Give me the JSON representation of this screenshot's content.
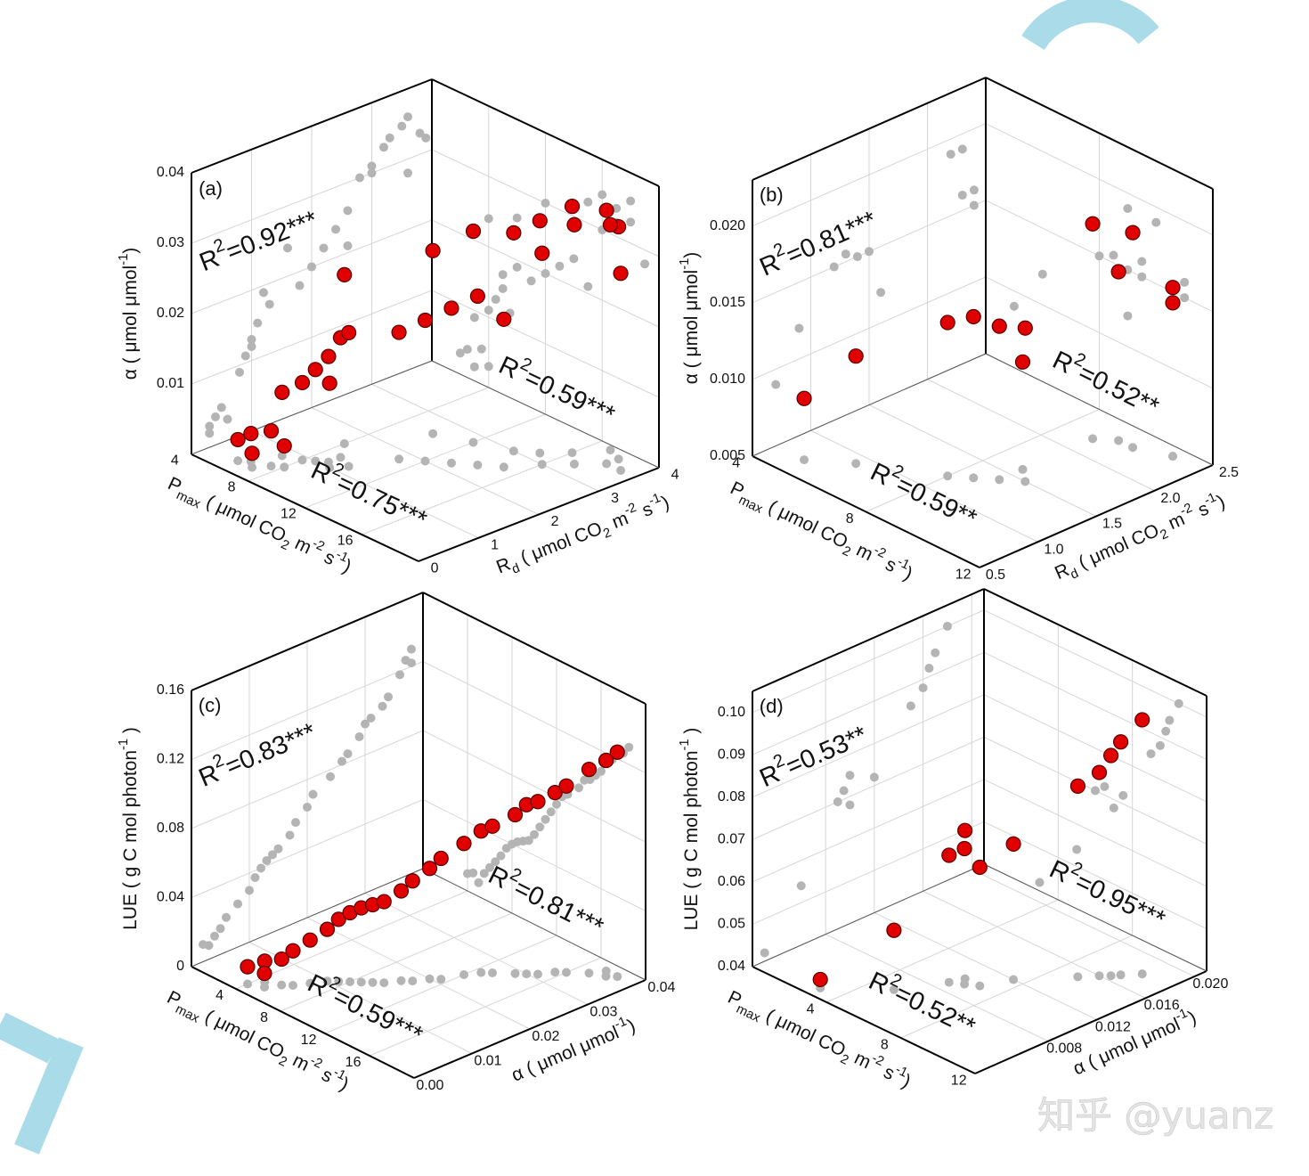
{
  "chart_data": [
    {
      "type": "scatter3d",
      "label": "(a)",
      "xlabel": [
        {
          "text": "P"
        },
        {
          "text": "max",
          "shift": "sub"
        },
        {
          "text": " ( μmol CO"
        },
        {
          "text": "2",
          "shift": "sub"
        },
        {
          "text": " m"
        },
        {
          "text": "-2",
          "shift": "sup"
        },
        {
          "text": " s"
        },
        {
          "text": "-1",
          "shift": "sup"
        },
        {
          "text": ")"
        }
      ],
      "ylabel": [
        {
          "text": "R"
        },
        {
          "text": "d",
          "shift": "sub"
        },
        {
          "text": " ( μmol CO"
        },
        {
          "text": "2",
          "shift": "sub"
        },
        {
          "text": " m"
        },
        {
          "text": "-2",
          "shift": "sup"
        },
        {
          "text": " s"
        },
        {
          "text": "-1",
          "shift": "sup"
        },
        {
          "text": ")"
        }
      ],
      "zlabel": [
        {
          "text": "α ( μmol μmol"
        },
        {
          "text": "-1",
          "shift": "sup"
        },
        {
          "text": ")"
        }
      ],
      "xlim": [
        4,
        20
      ],
      "ylim": [
        0,
        4
      ],
      "zlim": [
        0,
        0.04
      ],
      "xticks": [
        4,
        8,
        12,
        16
      ],
      "yticks": [
        0,
        1,
        2,
        3,
        4
      ],
      "zticks": [
        0.01,
        0.02,
        0.03,
        0.04
      ],
      "grid": true,
      "projection_color": "#b4b4b4",
      "series": [
        {
          "color": "#e00000",
          "x": [
            6,
            6.5,
            7,
            7.5,
            8,
            7,
            8,
            8.5,
            9,
            9.5,
            9,
            10,
            8,
            11,
            12,
            10,
            13,
            12,
            14,
            14,
            15,
            16,
            17,
            18,
            16,
            18,
            19,
            17,
            15
          ],
          "y": [
            0.3,
            0.4,
            0.3,
            0.5,
            0.6,
            0.8,
            0.9,
            1.0,
            1.1,
            1.0,
            1.3,
            1.2,
            1.6,
            1.8,
            2.0,
            2.6,
            2.2,
            2.8,
            2.4,
            3.0,
            3.2,
            3.0,
            3.3,
            3.6,
            3.5,
            3.8,
            3.6,
            3.9,
            2.6
          ],
          "z": [
            0.003,
            0.004,
            0.002,
            0.005,
            0.003,
            0.009,
            0.011,
            0.013,
            0.015,
            0.012,
            0.017,
            0.019,
            0.024,
            0.018,
            0.02,
            0.026,
            0.022,
            0.03,
            0.024,
            0.031,
            0.033,
            0.03,
            0.034,
            0.036,
            0.035,
            0.033,
            0.028,
            0.032,
            0.021
          ]
        }
      ],
      "annotations": [
        {
          "wall": "left",
          "text": [
            {
              "text": "R"
            },
            {
              "text": "2",
              "shift": "sup"
            },
            {
              "text": "=0.92***"
            }
          ]
        },
        {
          "wall": "right",
          "text": [
            {
              "text": "R"
            },
            {
              "text": "2",
              "shift": "sup"
            },
            {
              "text": "=0.59***"
            }
          ]
        },
        {
          "wall": "floor",
          "text": [
            {
              "text": "R"
            },
            {
              "text": "2",
              "shift": "sup"
            },
            {
              "text": "=0.75***"
            }
          ]
        }
      ]
    },
    {
      "type": "scatter3d",
      "label": "(b)",
      "xlabel": [
        {
          "text": "P"
        },
        {
          "text": "max",
          "shift": "sub"
        },
        {
          "text": " ( μmol CO"
        },
        {
          "text": "2",
          "shift": "sub"
        },
        {
          "text": " m"
        },
        {
          "text": "-2",
          "shift": "sup"
        },
        {
          "text": " s"
        },
        {
          "text": "-1",
          "shift": "sup"
        },
        {
          "text": ")"
        }
      ],
      "ylabel": [
        {
          "text": "R"
        },
        {
          "text": "d",
          "shift": "sub"
        },
        {
          "text": " ( μmol CO"
        },
        {
          "text": "2",
          "shift": "sub"
        },
        {
          "text": " m"
        },
        {
          "text": "-2",
          "shift": "sup"
        },
        {
          "text": " s"
        },
        {
          "text": "-1",
          "shift": "sup"
        },
        {
          "text": ")"
        }
      ],
      "zlabel": [
        {
          "text": "α ( μmol μmol"
        },
        {
          "text": "-1",
          "shift": "sup"
        },
        {
          "text": ")"
        }
      ],
      "xlim": [
        4,
        12
      ],
      "ylim": [
        0.5,
        2.5
      ],
      "zlim": [
        0.005,
        0.023
      ],
      "xticks": [
        4,
        8,
        12
      ],
      "yticks": [
        0.5,
        {
          "value": 1,
          "label": "1.0"
        },
        1.5,
        {
          "value": 2,
          "label": "2.0"
        },
        2.5
      ],
      "zticks": [
        0.005,
        {
          "value": 0.01,
          "label": "0.010"
        },
        0.015,
        {
          "value": 0.02,
          "label": "0.020"
        }
      ],
      "grid": true,
      "projection_color": "#b4b4b4",
      "series": [
        {
          "color": "#e00000",
          "x": [
            5,
            6,
            8,
            8.5,
            9,
            9.5,
            9,
            9,
            10,
            9.5,
            11,
            11
          ],
          "y": [
            0.7,
            0.9,
            1.2,
            1.3,
            1.4,
            1.5,
            1.6,
            2.2,
            2.3,
            2.3,
            2.4,
            2.4
          ],
          "z": [
            0.009,
            0.012,
            0.015,
            0.0155,
            0.015,
            0.015,
            0.012,
            0.019,
            0.019,
            0.016,
            0.016,
            0.015
          ]
        }
      ],
      "annotations": [
        {
          "wall": "left",
          "text": [
            {
              "text": "R"
            },
            {
              "text": "2",
              "shift": "sup"
            },
            {
              "text": "=0.81***"
            }
          ]
        },
        {
          "wall": "right",
          "text": [
            {
              "text": "R"
            },
            {
              "text": "2",
              "shift": "sup"
            },
            {
              "text": "=0.52**"
            }
          ]
        },
        {
          "wall": "floor",
          "text": [
            {
              "text": "R"
            },
            {
              "text": "2",
              "shift": "sup"
            },
            {
              "text": "=0.59**"
            }
          ]
        }
      ]
    },
    {
      "type": "scatter3d",
      "label": "(c)",
      "xlabel": [
        {
          "text": "P"
        },
        {
          "text": "max",
          "shift": "sub"
        },
        {
          "text": " ( μmol CO"
        },
        {
          "text": "2",
          "shift": "sub"
        },
        {
          "text": " m"
        },
        {
          "text": "-2",
          "shift": "sup"
        },
        {
          "text": " s"
        },
        {
          "text": "-1",
          "shift": "sup"
        },
        {
          "text": ")"
        }
      ],
      "ylabel": [
        {
          "text": "α ( μmol μmol"
        },
        {
          "text": "-1",
          "shift": "sup"
        },
        {
          "text": ")"
        }
      ],
      "zlabel": [
        {
          "text": "LUE ( g C mol photon"
        },
        {
          "text": "-1",
          "shift": "sup"
        },
        {
          "text": " )"
        }
      ],
      "xlim": [
        0,
        20
      ],
      "ylim": [
        0,
        0.04
      ],
      "zlim": [
        0,
        0.16
      ],
      "xticks": [
        4,
        8,
        12,
        16
      ],
      "yticks": [
        {
          "value": 0,
          "label": "0.00"
        },
        0.01,
        0.02,
        0.03,
        0.04
      ],
      "zticks": [
        0,
        0.04,
        0.08,
        0.12,
        0.16
      ],
      "grid": true,
      "projection_color": "#b4b4b4",
      "series": [
        {
          "color": "#e00000",
          "x": [
            4,
            4.5,
            5,
            5.5,
            6,
            6.5,
            7,
            7.5,
            8,
            8.5,
            9,
            9.5,
            10,
            10.5,
            11,
            11.5,
            12,
            12.5,
            13,
            14,
            14.5,
            15,
            15.5,
            16,
            17,
            18,
            18.5,
            17.5
          ],
          "y": [
            0.002,
            0.004,
            0.003,
            0.005,
            0.006,
            0.008,
            0.01,
            0.011,
            0.012,
            0.013,
            0.014,
            0.015,
            0.017,
            0.018,
            0.02,
            0.021,
            0.024,
            0.026,
            0.027,
            0.029,
            0.03,
            0.031,
            0.033,
            0.034,
            0.036,
            0.037,
            0.038,
            0.038
          ],
          "z": [
            0.01,
            0.012,
            0.008,
            0.015,
            0.02,
            0.025,
            0.03,
            0.036,
            0.04,
            0.043,
            0.045,
            0.047,
            0.052,
            0.058,
            0.064,
            0.07,
            0.076,
            0.082,
            0.085,
            0.092,
            0.098,
            0.1,
            0.104,
            0.108,
            0.118,
            0.125,
            0.13,
            0.122
          ]
        }
      ],
      "annotations": [
        {
          "wall": "left",
          "text": [
            {
              "text": "R"
            },
            {
              "text": "2",
              "shift": "sup"
            },
            {
              "text": "=0.83***"
            }
          ]
        },
        {
          "wall": "right",
          "text": [
            {
              "text": "R"
            },
            {
              "text": "2",
              "shift": "sup"
            },
            {
              "text": "=0.81***"
            }
          ]
        },
        {
          "wall": "floor",
          "text": [
            {
              "text": "R"
            },
            {
              "text": "2",
              "shift": "sup"
            },
            {
              "text": "=0.59***"
            }
          ]
        }
      ]
    },
    {
      "type": "scatter3d",
      "label": "(d)",
      "xlabel": [
        {
          "text": "P"
        },
        {
          "text": "max",
          "shift": "sub"
        },
        {
          "text": " ( μmol CO"
        },
        {
          "text": "2",
          "shift": "sub"
        },
        {
          "text": " m"
        },
        {
          "text": "-2",
          "shift": "sup"
        },
        {
          "text": " s"
        },
        {
          "text": "-1",
          "shift": "sup"
        },
        {
          "text": ")"
        }
      ],
      "ylabel": [
        {
          "text": "α ( μmol μmol"
        },
        {
          "text": "-1",
          "shift": "sup"
        },
        {
          "text": ")"
        }
      ],
      "zlabel": [
        {
          "text": "LUE ( g C mol photon"
        },
        {
          "text": "-1",
          "shift": "sup"
        },
        {
          "text": " )"
        }
      ],
      "xlim": [
        0,
        12
      ],
      "ylim": [
        0.002,
        0.021
      ],
      "zlim": [
        0.04,
        0.105
      ],
      "xticks": [
        4,
        8,
        12
      ],
      "yticks": [
        0.008,
        0.012,
        0.016,
        {
          "value": 0.02,
          "label": "0.020"
        }
      ],
      "zticks": [
        0.04,
        0.05,
        0.06,
        0.07,
        0.08,
        0.09,
        {
          "value": 0.1,
          "label": "0.10"
        }
      ],
      "grid": true,
      "projection_color": "#b4b4b4",
      "series": [
        {
          "color": "#e00000",
          "x": [
            3,
            5,
            6,
            6.5,
            6.2,
            7,
            7.5,
            9,
            9.5,
            9.8,
            10,
            10.5
          ],
          "y": [
            0.003,
            0.006,
            0.009,
            0.0095,
            0.01,
            0.01,
            0.012,
            0.015,
            0.016,
            0.0165,
            0.017,
            0.018
          ],
          "z": [
            0.042,
            0.054,
            0.07,
            0.072,
            0.075,
            0.068,
            0.072,
            0.085,
            0.088,
            0.092,
            0.095,
            0.1
          ]
        }
      ],
      "annotations": [
        {
          "wall": "left",
          "text": [
            {
              "text": "R"
            },
            {
              "text": "2",
              "shift": "sup"
            },
            {
              "text": "=0.53**"
            }
          ]
        },
        {
          "wall": "right",
          "text": [
            {
              "text": "R"
            },
            {
              "text": "2",
              "shift": "sup"
            },
            {
              "text": "=0.95***"
            }
          ]
        },
        {
          "wall": "floor",
          "text": [
            {
              "text": "R"
            },
            {
              "text": "2",
              "shift": "sup"
            },
            {
              "text": "=0.52**"
            }
          ]
        }
      ]
    }
  ],
  "watermark": "知乎 @yuanz"
}
